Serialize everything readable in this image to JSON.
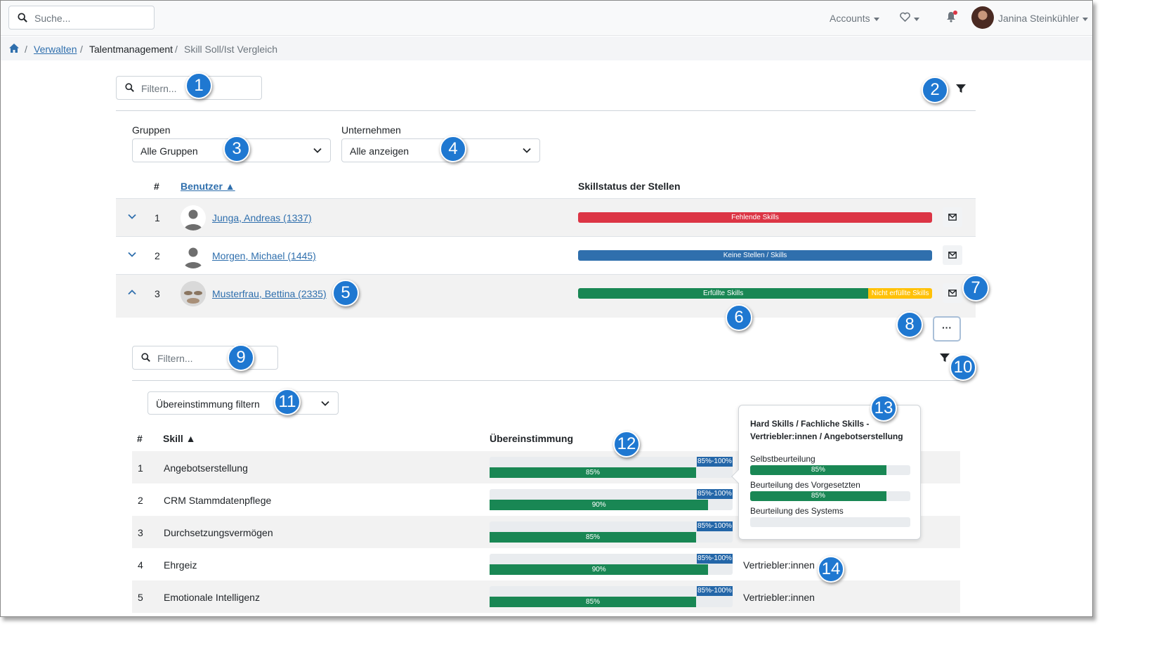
{
  "topbar": {
    "search_placeholder": "Suche...",
    "accounts": "Accounts",
    "user_name": "Janina Steinkühler"
  },
  "breadcrumb": {
    "items": [
      "Verwalten",
      "Talentmanagement",
      "Skill Soll/Ist Vergleich"
    ]
  },
  "main": {
    "filter_placeholder": "Filtern...",
    "groups_label": "Gruppen",
    "groups_value": "Alle Gruppen",
    "company_label": "Unternehmen",
    "company_value": "Alle anzeigen",
    "table": {
      "col_num": "#",
      "col_user": "Benutzer ▲",
      "col_status": "Skillstatus der Stellen",
      "rows": [
        {
          "num": "1",
          "name": "Junga, Andreas (1337)",
          "segments": [
            {
              "label": "Fehlende Skills",
              "color": "#dc3545",
              "share": 1.0
            }
          ]
        },
        {
          "num": "2",
          "name": "Morgen, Michael (1445)",
          "segments": [
            {
              "label": "Keine Stellen / Skills",
              "color": "#2f6fad",
              "share": 1.0
            }
          ]
        },
        {
          "num": "3",
          "name": "Musterfrau, Bettina (2335)",
          "segments": [
            {
              "label": "Erfüllte Skills",
              "color": "#198754",
              "share": 0.82
            },
            {
              "label": "Nicht erfüllte Skills",
              "color": "#ffc107",
              "share": 0.18
            }
          ]
        }
      ]
    }
  },
  "detail": {
    "filter_placeholder": "Filtern...",
    "match_filter": "Übereinstimmung filtern",
    "col_num": "#",
    "col_skill": "Skill ▲",
    "col_match": "Übereinstimmung",
    "skills": [
      {
        "num": "1",
        "name": "Angebotserstellung",
        "range": "85%-100%",
        "value": 85,
        "label": "85%",
        "job": ""
      },
      {
        "num": "2",
        "name": "CRM Stammdatenpflege",
        "range": "85%-100%",
        "value": 90,
        "label": "90%",
        "job": ""
      },
      {
        "num": "3",
        "name": "Durchsetzungsvermögen",
        "range": "85%-100%",
        "value": 85,
        "label": "85%",
        "job": ""
      },
      {
        "num": "4",
        "name": "Ehrgeiz",
        "range": "85%-100%",
        "value": 90,
        "label": "90%",
        "job": "Vertriebler:innen"
      },
      {
        "num": "5",
        "name": "Emotionale Intelligenz",
        "range": "85%-100%",
        "value": 85,
        "label": "85%",
        "job": "Vertriebler:innen"
      }
    ]
  },
  "popover": {
    "title": "Hard Skills / Fachliche Skills - Vertriebler:innen / Angebotserstellung",
    "items": [
      {
        "label": "Selbstbeurteilung",
        "value": 85,
        "text": "85%"
      },
      {
        "label": "Beurteilung des Vorgesetzten",
        "value": 85,
        "text": "85%"
      },
      {
        "label": "Beurteilung des Systems",
        "value": 0,
        "text": ""
      }
    ]
  },
  "callouts": [
    "1",
    "2",
    "3",
    "4",
    "5",
    "6",
    "7",
    "8",
    "9",
    "10",
    "11",
    "12",
    "13",
    "14"
  ],
  "icons": [
    "search-icon",
    "filter-icon",
    "chevron-down-icon",
    "heart-icon",
    "bell-icon",
    "home-icon",
    "mail-icon",
    "more-icon",
    "avatar-placeholder-icon"
  ]
}
